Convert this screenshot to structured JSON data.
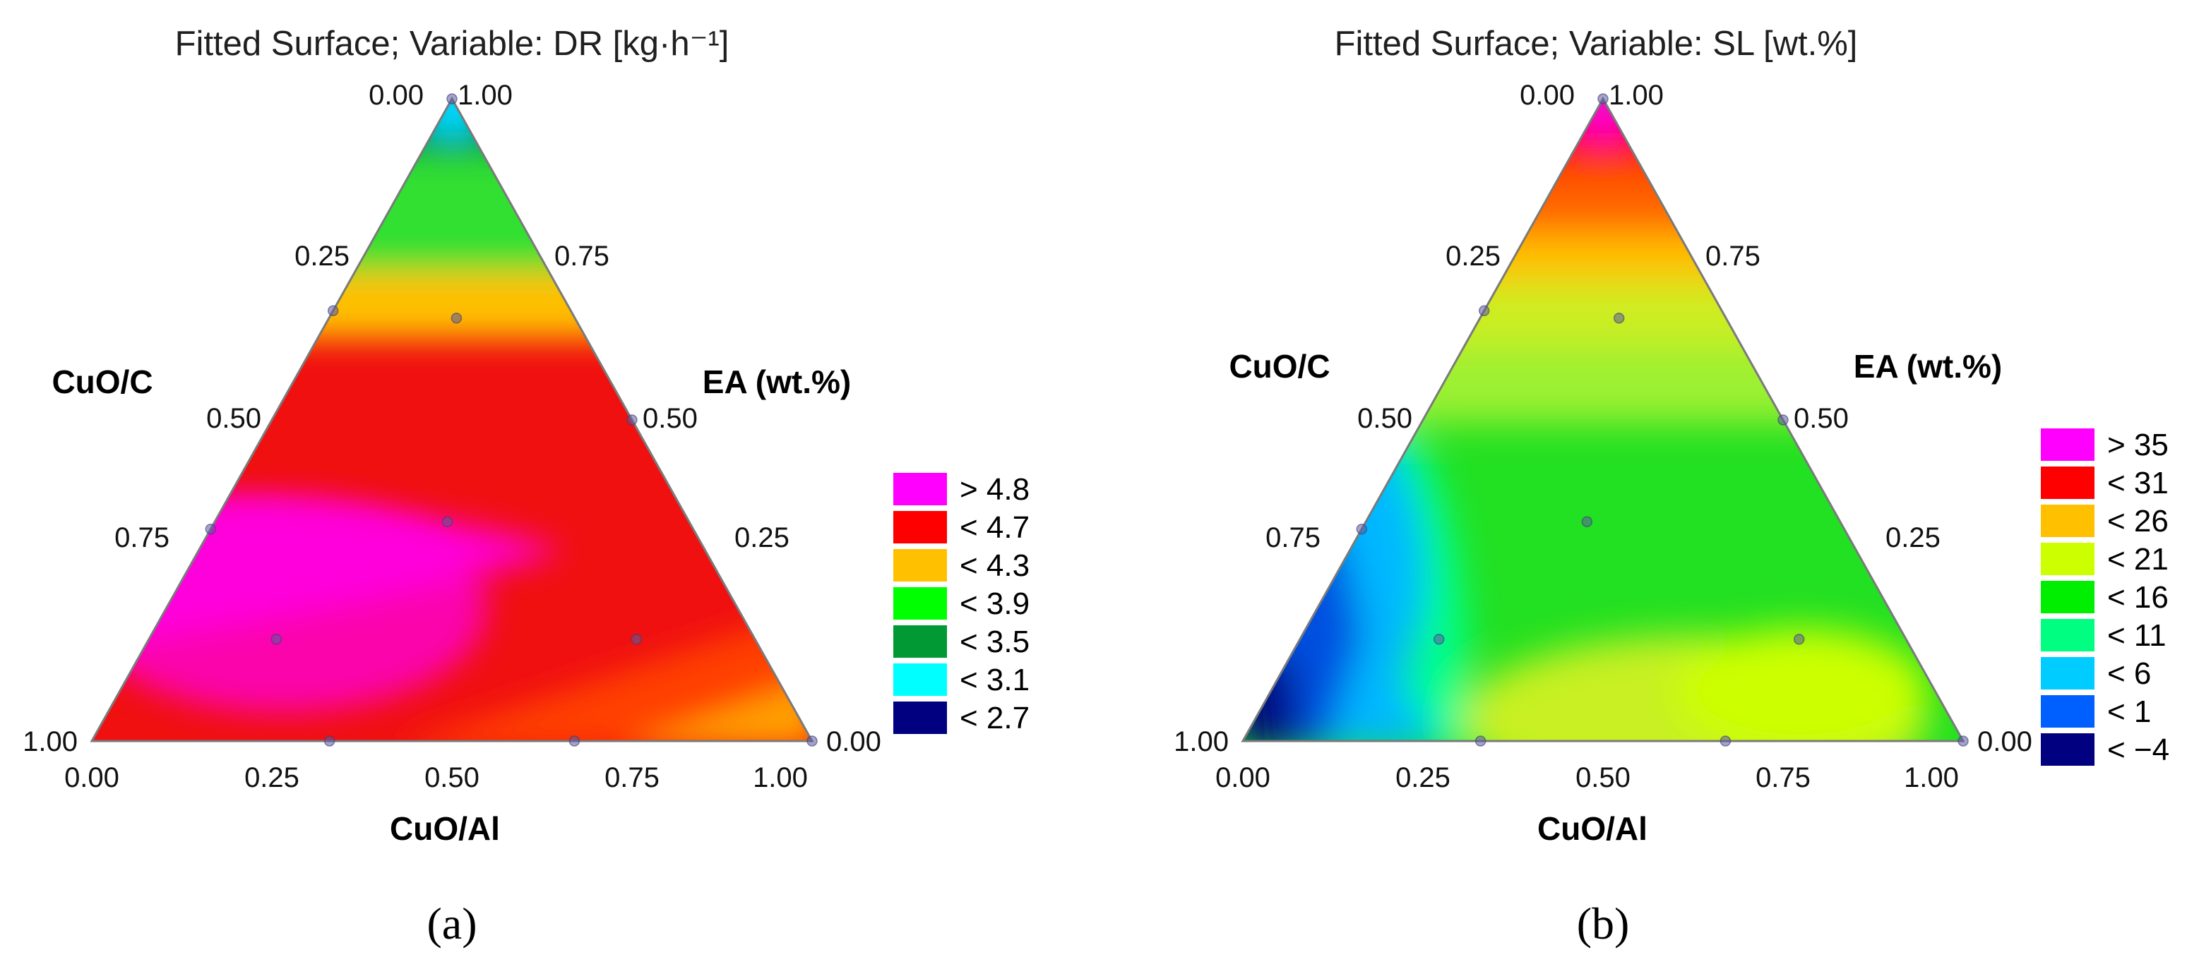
{
  "chart_data": [
    {
      "type": "ternary_contour",
      "title": "Fitted Surface; Variable: DR [kg·h⁻¹]",
      "axes": {
        "bottom": "CuO/Al",
        "left": "CuO/C",
        "right": "EA (wt.%)"
      },
      "bottom_ticks": [
        "0.00",
        "0.25",
        "0.50",
        "0.75",
        "1.00"
      ],
      "left_ticks": [
        "1.00",
        "0.75",
        "0.50",
        "0.25",
        "0.00"
      ],
      "right_ticks": [
        "1.00",
        "0.75",
        "0.50",
        "0.25",
        "0.00"
      ],
      "legend": [
        {
          "label": "> 4.8",
          "color": "#ff00ff"
        },
        {
          "label": "< 4.7",
          "color": "#ff0000"
        },
        {
          "label": "< 4.3",
          "color": "#ffc000"
        },
        {
          "label": "< 3.9",
          "color": "#00ff00"
        },
        {
          "label": "< 3.5",
          "color": "#009933"
        },
        {
          "label": "< 3.1",
          "color": "#00ffff"
        },
        {
          "label": "< 2.7",
          "color": "#000080"
        }
      ],
      "caption": "(a)",
      "design_points": [
        [
          0.33,
          0.67,
          0.0
        ],
        [
          0.67,
          0.33,
          0.0
        ],
        [
          1.0,
          0.0,
          0.0
        ],
        [
          0.17,
          0.67,
          0.17
        ],
        [
          0.67,
          0.17,
          0.17
        ],
        [
          0.33,
          0.33,
          0.33
        ],
        [
          0.17,
          0.17,
          0.67
        ],
        [
          0.0,
          0.67,
          0.33
        ],
        [
          0.0,
          0.33,
          0.67
        ],
        [
          0.0,
          0.0,
          1.0
        ],
        [
          0.5,
          0.0,
          0.5
        ]
      ]
    },
    {
      "type": "ternary_contour",
      "title": "Fitted Surface; Variable: SL [wt.%]",
      "axes": {
        "bottom": "CuO/Al",
        "left": "CuO/C",
        "right": "EA (wt.%)"
      },
      "bottom_ticks": [
        "0.00",
        "0.25",
        "0.50",
        "0.75",
        "1.00"
      ],
      "left_ticks": [
        "1.00",
        "0.75",
        "0.50",
        "0.25",
        "0.00"
      ],
      "right_ticks": [
        "1.00",
        "0.75",
        "0.50",
        "0.25",
        "0.00"
      ],
      "legend": [
        {
          "label": "> 35",
          "color": "#ff00ff"
        },
        {
          "label": "< 31",
          "color": "#ff0000"
        },
        {
          "label": "< 26",
          "color": "#ffc000"
        },
        {
          "label": "< 21",
          "color": "#ccff00"
        },
        {
          "label": "< 16",
          "color": "#00ee00"
        },
        {
          "label": "< 11",
          "color": "#00ff80"
        },
        {
          "label": "< 6",
          "color": "#00ccff"
        },
        {
          "label": "< 1",
          "color": "#0060ff"
        },
        {
          "label": "< −4",
          "color": "#000080"
        }
      ],
      "caption": "(b)",
      "design_points": [
        [
          0.33,
          0.67,
          0.0
        ],
        [
          0.67,
          0.33,
          0.0
        ],
        [
          1.0,
          0.0,
          0.0
        ],
        [
          0.17,
          0.67,
          0.17
        ],
        [
          0.67,
          0.17,
          0.17
        ],
        [
          0.33,
          0.33,
          0.33
        ],
        [
          0.17,
          0.17,
          0.67
        ],
        [
          0.0,
          0.67,
          0.33
        ],
        [
          0.0,
          0.33,
          0.67
        ],
        [
          0.0,
          0.0,
          1.0
        ],
        [
          0.5,
          0.0,
          0.5
        ]
      ]
    }
  ]
}
